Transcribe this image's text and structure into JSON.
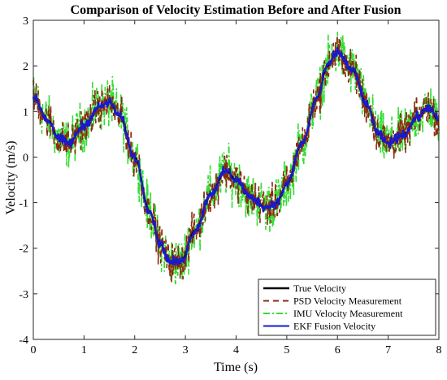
{
  "chart_data": {
    "type": "line",
    "title": "Comparison of Velocity Estimation Before and After Fusion",
    "xlabel": "Time (s)",
    "ylabel": "Velocity (m/s)",
    "xlim": [
      0,
      8
    ],
    "ylim": [
      -4,
      3
    ],
    "xticks": [
      0,
      1,
      2,
      3,
      4,
      5,
      6,
      7,
      8
    ],
    "yticks": [
      -4,
      -3,
      -2,
      -1,
      0,
      1,
      2,
      3
    ],
    "legend_position": "bottom-right",
    "grid": false,
    "series": [
      {
        "name": "True Velocity",
        "color": "#000000",
        "style": "solid",
        "x": [
          0,
          0.3,
          0.5,
          0.7,
          1.0,
          1.3,
          1.5,
          1.7,
          2.0,
          2.3,
          2.5,
          2.7,
          2.9,
          3.2,
          3.5,
          3.8,
          4.0,
          4.3,
          4.6,
          4.8,
          5.0,
          5.3,
          5.6,
          5.8,
          6.0,
          6.3,
          6.6,
          6.8,
          7.0,
          7.3,
          7.6,
          7.8,
          8.0
        ],
        "y": [
          1.3,
          0.8,
          0.4,
          0.3,
          0.7,
          1.1,
          1.2,
          0.9,
          0.0,
          -1.2,
          -1.9,
          -2.3,
          -2.3,
          -1.6,
          -0.8,
          -0.3,
          -0.5,
          -0.9,
          -1.1,
          -1.0,
          -0.6,
          0.3,
          1.3,
          2.0,
          2.3,
          1.9,
          1.1,
          0.5,
          0.3,
          0.5,
          0.9,
          1.1,
          0.8
        ]
      },
      {
        "name": "PSD Velocity Measurement",
        "color": "#8b2a0e",
        "style": "dashed",
        "noise": 0.3
      },
      {
        "name": "IMU Velocity Measurement",
        "color": "#33dd33",
        "style": "dashdot",
        "noise": 0.4
      },
      {
        "name": "EKF Fusion Velocity",
        "color": "#1a1acc",
        "style": "solid",
        "noise": 0.08
      }
    ]
  }
}
